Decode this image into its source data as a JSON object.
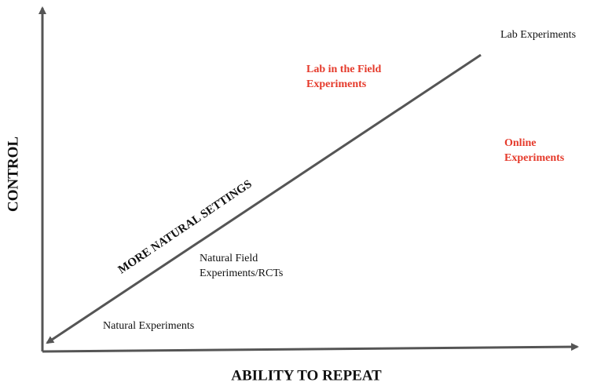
{
  "axes": {
    "x_label": "ABILITY TO REPEAT",
    "y_label": "CONTROL"
  },
  "diagonal_label": "MORE NATURAL SETTINGS",
  "items": [
    {
      "lines": [
        "Lab Experiments"
      ],
      "highlight": false
    },
    {
      "lines": [
        "Lab in the Field",
        "Experiments"
      ],
      "highlight": true
    },
    {
      "lines": [
        "Online",
        "Experiments"
      ],
      "highlight": true
    },
    {
      "lines": [
        "Natural Field",
        "Experiments/RCTs"
      ],
      "highlight": false
    },
    {
      "lines": [
        "Natural Experiments"
      ],
      "highlight": false
    }
  ]
}
